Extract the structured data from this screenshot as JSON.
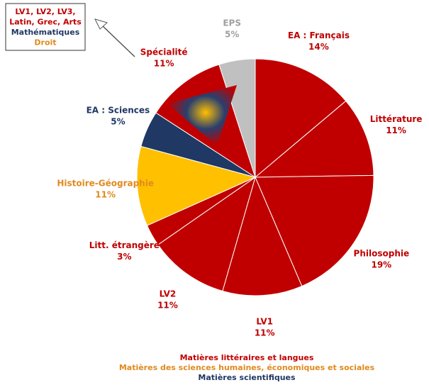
{
  "chart_data": {
    "type": "pie",
    "categories": [
      "EA : Français",
      "Littérature",
      "Philosophie",
      "LV1",
      "LV2",
      "Litt. étrangère",
      "Histoire-Géographie",
      "EA : Sciences",
      "Spécialité",
      "EPS"
    ],
    "values": [
      14,
      11,
      19,
      11,
      11,
      3,
      11,
      5,
      11,
      5
    ],
    "value_labels": [
      "14%",
      "11%",
      "19%",
      "11%",
      "11%",
      "3%",
      "11%",
      "5%",
      "11%",
      "5%"
    ],
    "colors": [
      "#c00000",
      "#c00000",
      "#c00000",
      "#c00000",
      "#c00000",
      "#c00000",
      "#ffc000",
      "#1f3864",
      "#c00000",
      "#c0c0c0"
    ],
    "label_colors": [
      "#c00000",
      "#c00000",
      "#c00000",
      "#c00000",
      "#c00000",
      "#c00000",
      "#e08a1e",
      "#1f3864",
      "#c00000",
      "#a0a0a0"
    ],
    "annotation": [
      {
        "text": "LV1, LV2, LV3,",
        "color": "#c00000"
      },
      {
        "text": "Latin, Grec, Arts",
        "color": "#c00000"
      },
      {
        "text": "Mathématiques",
        "color": "#1f3864"
      },
      {
        "text": "Droit",
        "color": "#e08a1e"
      }
    ],
    "legend": [
      {
        "label": "Matières littéraires et langues",
        "color": "#c00000"
      },
      {
        "label": "Matières des sciences humaines, économiques et sociales",
        "color": "#e08a1e"
      },
      {
        "label": "Matières scientifiques",
        "color": "#1f3864"
      }
    ]
  }
}
